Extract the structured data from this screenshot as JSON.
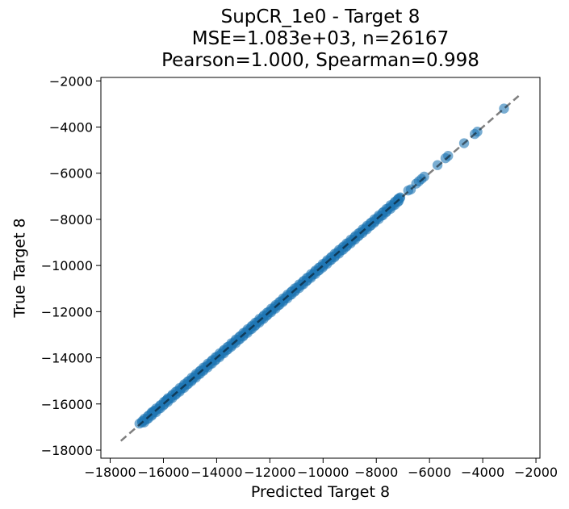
{
  "chart_data": {
    "type": "scatter",
    "title": [
      "SupCR_1e0 - Target 8",
      "MSE=1.083e+03, n=26167",
      "Pearson=1.000, Spearman=0.998"
    ],
    "xlabel": "Predicted Target 8",
    "ylabel": "True Target 8",
    "xlim": [
      -18350,
      -1850
    ],
    "ylim": [
      -18350,
      -1850
    ],
    "xticks": [
      -18000,
      -16000,
      -14000,
      -12000,
      -10000,
      -8000,
      -6000,
      -4000,
      -2000
    ],
    "yticks": [
      -18000,
      -16000,
      -14000,
      -12000,
      -10000,
      -8000,
      -6000,
      -4000,
      -2000
    ],
    "xtick_labels": [
      "−18000",
      "−16000",
      "−14000",
      "−12000",
      "−10000",
      "−8000",
      "−6000",
      "−4000",
      "−2000"
    ],
    "ytick_labels": [
      "−18000",
      "−16000",
      "−14000",
      "−12000",
      "−10000",
      "−8000",
      "−6000",
      "−4000",
      "−2000"
    ],
    "grid": false,
    "point_color": "#1f77b4",
    "reference_line": {
      "x": [
        -17600,
        -2650
      ],
      "y": [
        -17600,
        -2650
      ],
      "style": "dashed",
      "color": "#000000"
    },
    "dense_band": {
      "from": -16800,
      "to": -7100
    },
    "sparse_points": [
      {
        "x": -16900,
        "y": -16850
      },
      {
        "x": -16800,
        "y": -16750
      },
      {
        "x": -16450,
        "y": -16400
      },
      {
        "x": -16350,
        "y": -16300
      },
      {
        "x": -15900,
        "y": -15850
      },
      {
        "x": -15850,
        "y": -15800
      },
      {
        "x": -7200,
        "y": -7150
      },
      {
        "x": -7100,
        "y": -7050
      },
      {
        "x": -6800,
        "y": -6750
      },
      {
        "x": -6700,
        "y": -6700
      },
      {
        "x": -6500,
        "y": -6450
      },
      {
        "x": -6400,
        "y": -6350
      },
      {
        "x": -6300,
        "y": -6250
      },
      {
        "x": -6200,
        "y": -6150
      },
      {
        "x": -5700,
        "y": -5650
      },
      {
        "x": -5400,
        "y": -5350
      },
      {
        "x": -5300,
        "y": -5250
      },
      {
        "x": -4700,
        "y": -4700
      },
      {
        "x": -4300,
        "y": -4300
      },
      {
        "x": -4200,
        "y": -4200
      },
      {
        "x": -3200,
        "y": -3200
      }
    ]
  }
}
